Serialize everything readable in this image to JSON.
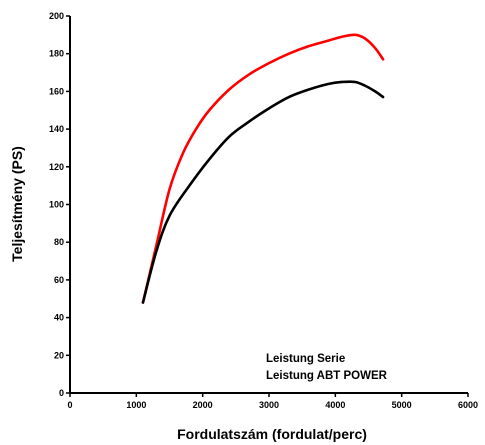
{
  "chart_data": {
    "type": "line",
    "xlabel": "Fordulatszám (fordulat/perc)",
    "ylabel": "Teljesítmény (PS)",
    "xlim": [
      0,
      6000
    ],
    "ylim": [
      0,
      200
    ],
    "x_ticks": [
      0,
      1000,
      2000,
      3000,
      4000,
      5000,
      6000
    ],
    "y_ticks": [
      0,
      20,
      40,
      60,
      80,
      100,
      120,
      140,
      160,
      180,
      200
    ],
    "grid": false,
    "legend_position": "bottom-right",
    "legend_entries": [
      "Leistung Serie",
      "Leistung ABT POWER"
    ],
    "series": [
      {
        "color": "#ff0000",
        "x": [
          1100,
          1300,
          1500,
          1700,
          1900,
          2100,
          2400,
          2700,
          3000,
          3300,
          3600,
          3900,
          4100,
          4300,
          4450,
          4600,
          4720
        ],
        "y": [
          48,
          78,
          108,
          127,
          140,
          150,
          161,
          169,
          175,
          180,
          184,
          187,
          189,
          190,
          188,
          183,
          177
        ]
      },
      {
        "color": "#000000",
        "x": [
          1100,
          1300,
          1500,
          1800,
          2100,
          2400,
          2700,
          3000,
          3300,
          3600,
          3900,
          4100,
          4300,
          4450,
          4600,
          4720
        ],
        "y": [
          48,
          75,
          94,
          110,
          124,
          136,
          144,
          151,
          157,
          161,
          164,
          165,
          165,
          163,
          160,
          157
        ]
      }
    ]
  }
}
